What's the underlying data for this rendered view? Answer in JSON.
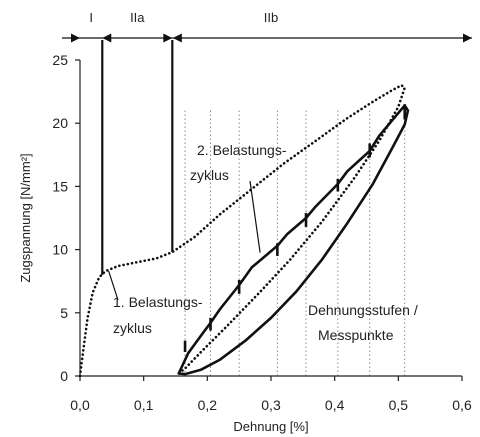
{
  "chart_data": {
    "type": "line",
    "xlabel": "Dehnung [%]",
    "ylabel": "Zugspannung [N/mm²]",
    "xlim": [
      0,
      0.6
    ],
    "ylim": [
      0,
      25
    ],
    "x_ticks": [
      0,
      0.1,
      0.2,
      0.3,
      0.4,
      0.5,
      0.6
    ],
    "x_tick_labels": [
      "0,0",
      "0,1",
      "0,2",
      "0,3",
      "0,4",
      "0,5",
      "0,6"
    ],
    "y_ticks": [
      0,
      5,
      10,
      15,
      20,
      25
    ],
    "y_tick_labels": [
      "0",
      "5",
      "10",
      "15",
      "20",
      "25"
    ],
    "regions": [
      {
        "label": "I",
        "x_start": 0.0,
        "x_end": 0.035
      },
      {
        "label": "IIa",
        "x_start": 0.035,
        "x_end": 0.145
      },
      {
        "label": "IIb",
        "x_start": 0.145,
        "x_end": 0.6
      }
    ],
    "series": [
      {
        "style": "dotted",
        "x": [
          0.0,
          0.005,
          0.012,
          0.02,
          0.03,
          0.04,
          0.06,
          0.09,
          0.12,
          0.145,
          0.18,
          0.22,
          0.27,
          0.32,
          0.37,
          0.42,
          0.46,
          0.49,
          0.505,
          0.51,
          0.5,
          0.47,
          0.43,
          0.38,
          0.33,
          0.28,
          0.23,
          0.19,
          0.165,
          0.155
        ],
        "y": [
          0.0,
          2.0,
          4.6,
          6.6,
          7.8,
          8.3,
          8.7,
          9.0,
          9.3,
          9.8,
          11.0,
          12.8,
          14.8,
          16.8,
          18.6,
          20.4,
          21.7,
          22.6,
          23.0,
          22.8,
          21.3,
          18.6,
          15.6,
          12.2,
          9.2,
          6.5,
          3.9,
          1.9,
          0.6,
          0.2
        ]
      },
      {
        "style": "solid",
        "x": [
          0.155,
          0.17,
          0.19,
          0.205,
          0.22,
          0.25,
          0.27,
          0.31,
          0.325,
          0.355,
          0.37,
          0.405,
          0.42,
          0.455,
          0.47,
          0.5,
          0.51,
          0.515,
          0.51,
          0.49,
          0.46,
          0.42,
          0.38,
          0.34,
          0.3,
          0.26,
          0.22,
          0.19,
          0.165,
          0.155
        ],
        "y": [
          0.2,
          1.8,
          3.2,
          4.2,
          5.3,
          7.2,
          8.6,
          10.3,
          11.2,
          12.5,
          13.4,
          15.2,
          16.2,
          17.8,
          19.0,
          20.8,
          21.4,
          21.0,
          19.9,
          18.0,
          15.2,
          12.1,
          9.2,
          6.7,
          4.6,
          2.8,
          1.3,
          0.5,
          0.15,
          0.2
        ]
      }
    ],
    "jumps": [
      {
        "x": 0.165,
        "y_top": 2.8,
        "y_bottom": 1.9
      },
      {
        "x": 0.205,
        "y_top": 4.6,
        "y_bottom": 3.6
      },
      {
        "x": 0.25,
        "y_top": 7.6,
        "y_bottom": 6.5
      },
      {
        "x": 0.31,
        "y_top": 10.5,
        "y_bottom": 9.5
      },
      {
        "x": 0.355,
        "y_top": 12.9,
        "y_bottom": 11.8
      },
      {
        "x": 0.405,
        "y_top": 15.6,
        "y_bottom": 14.6
      },
      {
        "x": 0.455,
        "y_top": 18.4,
        "y_bottom": 17.3
      },
      {
        "x": 0.51,
        "y_top": 21.5,
        "y_bottom": 20.3
      }
    ],
    "measurement_points_x": [
      0.165,
      0.205,
      0.25,
      0.31,
      0.355,
      0.405,
      0.455,
      0.51
    ],
    "vertical_markers_x": [
      0.035,
      0.145
    ],
    "annotations": [
      {
        "lines": [
          "1. Belastungs-",
          "zyklus"
        ],
        "target_x": 0.045,
        "target_y": 8.3
      },
      {
        "lines": [
          "2. Belastungs-",
          "zyklus"
        ],
        "target_x": 0.33,
        "target_y": 11.5
      },
      {
        "lines": [
          "Dehnungsstufen /",
          "Messpunkte"
        ]
      }
    ]
  }
}
